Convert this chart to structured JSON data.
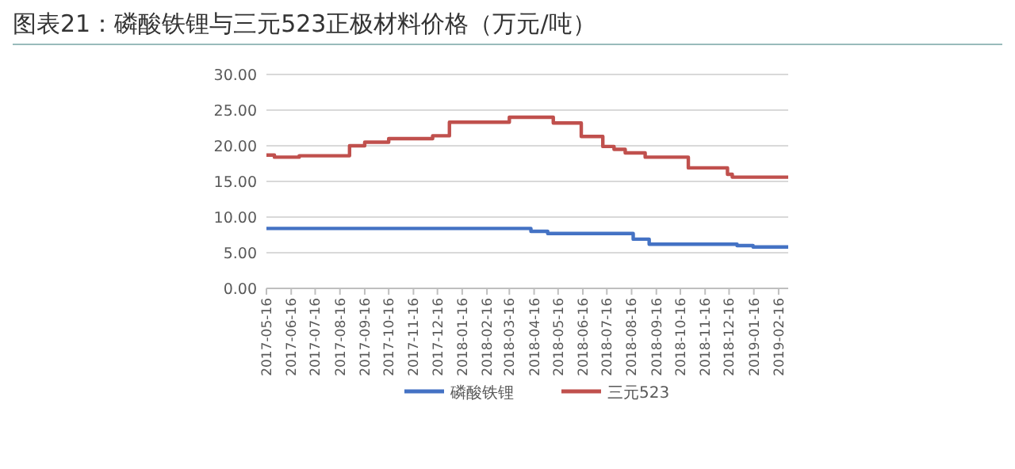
{
  "chart_data": {
    "type": "step",
    "title": "图表21：磷酸铁锂与三元523正极材料价格（万元/吨）",
    "xlim": [
      "2017-05-16",
      "2019-02-28"
    ],
    "xticks": [
      "2017-05-16",
      "2017-06-16",
      "2017-07-16",
      "2017-08-16",
      "2017-09-16",
      "2017-10-16",
      "2017-11-16",
      "2017-12-16",
      "2018-01-16",
      "2018-02-16",
      "2018-03-16",
      "2018-04-16",
      "2018-05-16",
      "2018-06-16",
      "2018-07-16",
      "2018-08-16",
      "2018-09-16",
      "2018-10-16",
      "2018-11-16",
      "2018-12-16",
      "2019-01-16",
      "2019-02-16"
    ],
    "ylim": [
      0,
      30
    ],
    "yticks": [
      {
        "value": 0,
        "label": "0.00"
      },
      {
        "value": 5,
        "label": "5.00"
      },
      {
        "value": 10,
        "label": "10.00"
      },
      {
        "value": 15,
        "label": "15.00"
      },
      {
        "value": 20,
        "label": "20.00"
      },
      {
        "value": 25,
        "label": "25.00"
      },
      {
        "value": 30,
        "label": "30.00"
      }
    ],
    "grid": "y",
    "legend": "bottom",
    "series": [
      {
        "name": "磷酸铁锂",
        "color": "#4472c4",
        "x": [
          "2017-05-16",
          "2018-04-12",
          "2018-05-03",
          "2018-08-18",
          "2018-09-07",
          "2018-12-26",
          "2019-01-15",
          "2019-02-28"
        ],
        "values": [
          8.4,
          8.0,
          7.7,
          6.9,
          6.2,
          6.0,
          5.8,
          5.8
        ]
      },
      {
        "name": "三元523",
        "color": "#c0504d",
        "x": [
          "2017-05-16",
          "2017-05-26",
          "2017-06-26",
          "2017-08-28",
          "2017-09-16",
          "2017-10-16",
          "2017-12-10",
          "2017-12-31",
          "2018-03-16",
          "2018-05-10",
          "2018-06-14",
          "2018-07-11",
          "2018-07-25",
          "2018-08-08",
          "2018-09-02",
          "2018-10-26",
          "2018-12-14",
          "2018-12-20",
          "2019-02-28"
        ],
        "values": [
          18.7,
          18.4,
          18.6,
          20.0,
          20.5,
          21.0,
          21.4,
          23.3,
          24.0,
          23.2,
          21.3,
          19.9,
          19.5,
          19.0,
          18.4,
          16.9,
          16.0,
          15.6,
          15.6
        ]
      }
    ]
  }
}
